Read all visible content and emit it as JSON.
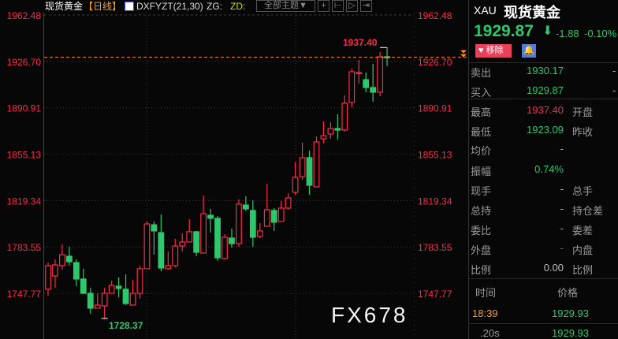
{
  "topbar": {
    "title": "现货黄金",
    "period": "【日线】",
    "indicator": "DXFYZT(21,30)",
    "zg": "ZG:",
    "zd": "ZD:",
    "theme_select": "全部主题▼"
  },
  "axis": {
    "labels": [
      "1962.48",
      "1926.70",
      "1890.91",
      "1855.13",
      "1819.34",
      "1783.55",
      "1747.77"
    ]
  },
  "annotations": {
    "high_label": "1937.40",
    "low_label": "1728.37"
  },
  "colors": {
    "up": "#ff2a46",
    "down": "#2ec76c",
    "last_line": "#ff8c1a",
    "axis_text": "#ff2a46"
  },
  "chart_data": {
    "type": "candlestick",
    "ylim": [
      1728.37,
      1962.48
    ],
    "y_ticks": [
      1962.48,
      1926.7,
      1890.91,
      1855.13,
      1819.34,
      1783.55,
      1747.77
    ],
    "last_price": 1929.87,
    "ohlc": [
      [
        1750.9,
        1771.5,
        1746.0,
        1769.1
      ],
      [
        1761.2,
        1774.0,
        1752.1,
        1769.7
      ],
      [
        1769.1,
        1785.5,
        1766.1,
        1777.6
      ],
      [
        1776.4,
        1783.7,
        1769.1,
        1772.1
      ],
      [
        1771.5,
        1774.0,
        1753.3,
        1758.8
      ],
      [
        1758.8,
        1766.7,
        1747.2,
        1747.8
      ],
      [
        1747.8,
        1752.1,
        1732.0,
        1736.3
      ],
      [
        1736.3,
        1747.8,
        1736.3,
        1738.7
      ],
      [
        1738.1,
        1752.1,
        1728.37,
        1747.8
      ],
      [
        1747.8,
        1757.6,
        1747.8,
        1753.9
      ],
      [
        1753.3,
        1760.0,
        1744.8,
        1751.5
      ],
      [
        1750.9,
        1762.4,
        1738.7,
        1739.9
      ],
      [
        1738.7,
        1758.2,
        1738.7,
        1747.8
      ],
      [
        1747.8,
        1769.1,
        1743.6,
        1766.7
      ],
      [
        1766.7,
        1803.2,
        1766.7,
        1801.3
      ],
      [
        1800.7,
        1803.2,
        1777.6,
        1795.9
      ],
      [
        1794.6,
        1808.6,
        1764.8,
        1767.3
      ],
      [
        1766.7,
        1780.1,
        1766.1,
        1769.1
      ],
      [
        1769.1,
        1789.8,
        1767.9,
        1784.3
      ],
      [
        1784.3,
        1794.0,
        1780.1,
        1787.3
      ],
      [
        1787.3,
        1805.0,
        1787.3,
        1795.3
      ],
      [
        1795.3,
        1795.9,
        1776.4,
        1779.4
      ],
      [
        1778.8,
        1823.2,
        1778.8,
        1809.2
      ],
      [
        1808.0,
        1812.9,
        1794.6,
        1805.6
      ],
      [
        1805.6,
        1807.4,
        1772.8,
        1775.2
      ],
      [
        1774.6,
        1793.4,
        1774.0,
        1791.0
      ],
      [
        1790.4,
        1797.7,
        1783.1,
        1786.1
      ],
      [
        1786.1,
        1820.2,
        1783.7,
        1816.5
      ],
      [
        1815.9,
        1822.6,
        1811.1,
        1812.9
      ],
      [
        1811.7,
        1819.6,
        1783.7,
        1791.0
      ],
      [
        1791.6,
        1801.9,
        1790.4,
        1795.9
      ],
      [
        1799.5,
        1832.3,
        1799.5,
        1812.3
      ],
      [
        1811.7,
        1813.5,
        1795.9,
        1802.6
      ],
      [
        1803.2,
        1819.0,
        1803.2,
        1813.5
      ],
      [
        1813.5,
        1825.1,
        1812.3,
        1821.4
      ],
      [
        1825.7,
        1848.8,
        1823.8,
        1837.2
      ],
      [
        1837.8,
        1864.0,
        1835.4,
        1852.4
      ],
      [
        1852.4,
        1857.9,
        1823.8,
        1831.1
      ],
      [
        1829.9,
        1868.8,
        1829.9,
        1864.6
      ],
      [
        1867.0,
        1880.4,
        1863.4,
        1869.4
      ],
      [
        1870.7,
        1879.8,
        1867.0,
        1874.9
      ],
      [
        1874.9,
        1885.9,
        1866.4,
        1873.7
      ],
      [
        1873.7,
        1900.5,
        1872.5,
        1894.4
      ],
      [
        1895.0,
        1921.1,
        1891.3,
        1918.7
      ],
      [
        1917.5,
        1927.8,
        1909.6,
        1918.1
      ],
      [
        1912.6,
        1918.1,
        1902.9,
        1906.5
      ],
      [
        1906.5,
        1924.8,
        1895.6,
        1902.9
      ],
      [
        1902.9,
        1933.9,
        1899.8,
        1930.3
      ],
      [
        1930.3,
        1937.4,
        1923.09,
        1929.87
      ]
    ]
  },
  "quote": {
    "code": "XAU",
    "name": "现货黄金",
    "price": "1929.87",
    "change": "-1.88",
    "change_pct": "-0.10%",
    "remove_label": "移除",
    "rows": [
      {
        "label": "卖出",
        "value": "1930.17",
        "color": "g",
        "label2": "",
        "value2": "-"
      },
      {
        "label": "买入",
        "value": "1929.87",
        "color": "g",
        "label2": "",
        "value2": "-"
      },
      {
        "label": "最高",
        "value": "1937.40",
        "color": "r",
        "label2": "开盘"
      },
      {
        "label": "最低",
        "value": "1923.09",
        "color": "g",
        "label2": "昨收"
      },
      {
        "label": "均价",
        "value": "-",
        "color": "w",
        "label2": ""
      },
      {
        "label": "振幅",
        "value": "0.74%",
        "color": "g",
        "label2": ""
      },
      {
        "label": "现手",
        "value": "-",
        "color": "w",
        "label2": "总手"
      },
      {
        "label": "总持",
        "value": "-",
        "color": "w",
        "label2": "持仓差"
      },
      {
        "label": "委比",
        "value": "-",
        "color": "w",
        "label2": "委差"
      },
      {
        "label": "外盘",
        "value": "-",
        "color": "r",
        "label2": "内盘"
      },
      {
        "label": "比例",
        "value": "0.00",
        "color": "w",
        "label2": "比例"
      }
    ]
  },
  "ticks": {
    "col_time": "时间",
    "col_price": "价格",
    "rows": [
      {
        "time": "18:39",
        "price": "1929.93"
      },
      {
        "time": ".20s",
        "price": "1929.93"
      }
    ]
  },
  "watermark": "FX678"
}
